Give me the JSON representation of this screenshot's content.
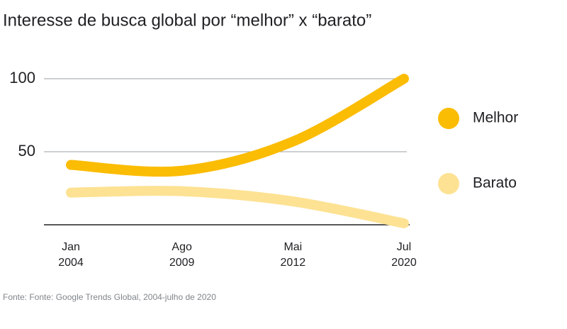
{
  "chart_data": {
    "type": "line",
    "title": "Interesse de busca global por “melhor” x “barato”",
    "source": "Fonte: Fonte: Google Trends Global, 2004-julho de 2020",
    "categories": [
      "Jan 2004",
      "Ago 2009",
      "Mai 2012",
      "Jul 2020"
    ],
    "series": [
      {
        "name": "Melhor",
        "color": "#fbbc04",
        "values": [
          41,
          37,
          57,
          100
        ]
      },
      {
        "name": "Barato",
        "color": "#fde293",
        "values": [
          22,
          23,
          16,
          1
        ]
      }
    ],
    "ylim": [
      0,
      100
    ],
    "yticks": [
      50,
      100
    ],
    "grid": true,
    "legend": "right"
  }
}
